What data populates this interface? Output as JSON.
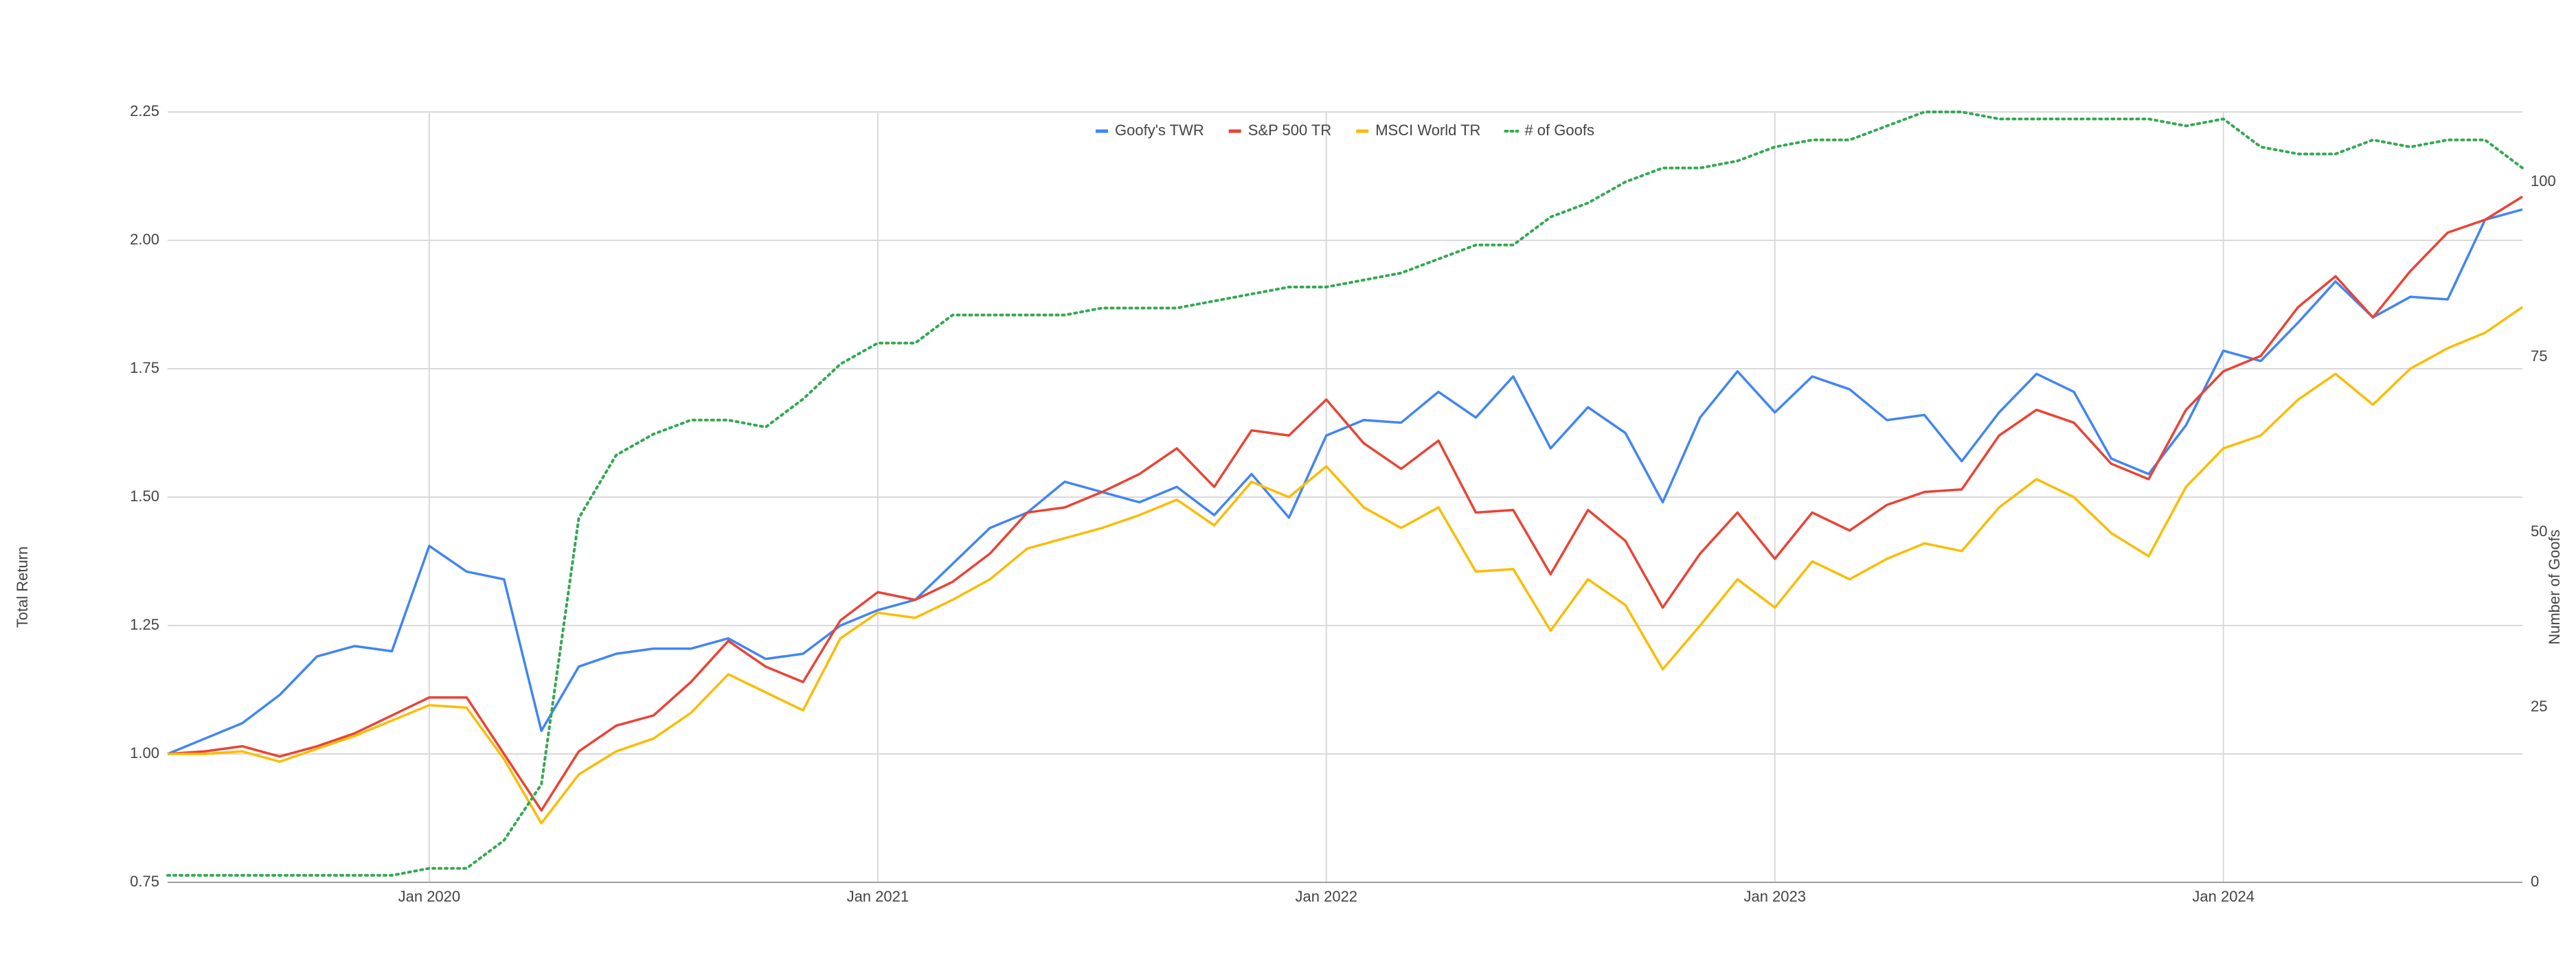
{
  "chart_data": {
    "type": "line",
    "x": [
      "2019-06",
      "2019-07",
      "2019-08",
      "2019-09",
      "2019-10",
      "2019-11",
      "2019-12",
      "2020-01",
      "2020-02",
      "2020-03",
      "2020-04",
      "2020-05",
      "2020-06",
      "2020-07",
      "2020-08",
      "2020-09",
      "2020-10",
      "2020-11",
      "2020-12",
      "2021-01",
      "2021-02",
      "2021-03",
      "2021-04",
      "2021-05",
      "2021-06",
      "2021-07",
      "2021-08",
      "2021-09",
      "2021-10",
      "2021-11",
      "2021-12",
      "2022-01",
      "2022-02",
      "2022-03",
      "2022-04",
      "2022-05",
      "2022-06",
      "2022-07",
      "2022-08",
      "2022-09",
      "2022-10",
      "2022-11",
      "2022-12",
      "2023-01",
      "2023-02",
      "2023-03",
      "2023-04",
      "2023-05",
      "2023-06",
      "2023-07",
      "2023-08",
      "2023-09",
      "2023-10",
      "2023-11",
      "2023-12",
      "2024-01",
      "2024-02",
      "2024-03",
      "2024-04",
      "2024-05",
      "2024-06",
      "2024-07",
      "2024-08",
      "2024-09"
    ],
    "xlim": [
      "2019-06",
      "2024-09"
    ],
    "xticks": [
      {
        "value": "2020-01",
        "label": "Jan 2020"
      },
      {
        "value": "2021-01",
        "label": "Jan 2021"
      },
      {
        "value": "2022-01",
        "label": "Jan 2022"
      },
      {
        "value": "2023-01",
        "label": "Jan 2023"
      },
      {
        "value": "2024-01",
        "label": "Jan 2024"
      }
    ],
    "ylabel": "Total Return",
    "y2label": "Number of Goofs",
    "ylim": [
      0.75,
      2.25
    ],
    "yticks": [
      0.75,
      {
        "value": 1,
        "label": "1.00"
      },
      1.25,
      {
        "value": 1.5,
        "label": "1.50"
      },
      1.75,
      {
        "value": 2,
        "label": "2.00"
      },
      2.25
    ],
    "y2lim": [
      0,
      110
    ],
    "y2ticks": [
      0,
      25,
      50,
      75,
      100
    ],
    "grid": true,
    "legend": "top",
    "series": [
      {
        "name": "Goofy's TWR",
        "color": "#4285f4",
        "style": "solid",
        "values": [
          1.0,
          1.03,
          1.06,
          1.115,
          1.19,
          1.21,
          1.2,
          1.405,
          1.355,
          1.34,
          1.045,
          1.17,
          1.195,
          1.205,
          1.205,
          1.225,
          1.185,
          1.195,
          1.25,
          1.28,
          1.3,
          1.37,
          1.44,
          1.47,
          1.53,
          1.51,
          1.49,
          1.52,
          1.465,
          1.545,
          1.46,
          1.62,
          1.65,
          1.645,
          1.705,
          1.655,
          1.735,
          1.595,
          1.675,
          1.625,
          1.49,
          1.655,
          1.745,
          1.665,
          1.735,
          1.71,
          1.65,
          1.66,
          1.57,
          1.665,
          1.74,
          1.705,
          1.575,
          1.545,
          1.64,
          1.785,
          1.765,
          1.84,
          1.92,
          1.85,
          1.89,
          1.885,
          2.04,
          2.06
        ]
      },
      {
        "name": "S&P 500 TR",
        "color": "#ea4335",
        "style": "solid",
        "values": [
          1.0,
          1.005,
          1.015,
          0.995,
          1.015,
          1.04,
          1.075,
          1.11,
          1.11,
          1.0,
          0.89,
          1.005,
          1.055,
          1.075,
          1.14,
          1.22,
          1.17,
          1.14,
          1.26,
          1.315,
          1.3,
          1.335,
          1.39,
          1.47,
          1.48,
          1.51,
          1.545,
          1.595,
          1.52,
          1.63,
          1.62,
          1.69,
          1.605,
          1.555,
          1.61,
          1.47,
          1.475,
          1.35,
          1.475,
          1.415,
          1.285,
          1.39,
          1.47,
          1.38,
          1.47,
          1.435,
          1.485,
          1.51,
          1.515,
          1.62,
          1.67,
          1.645,
          1.565,
          1.535,
          1.67,
          1.745,
          1.775,
          1.87,
          1.93,
          1.85,
          1.94,
          2.015,
          2.04,
          2.085
        ]
      },
      {
        "name": "MSCI World TR",
        "color": "#fbbc04",
        "style": "solid",
        "values": [
          1.0,
          1.0,
          1.005,
          0.985,
          1.01,
          1.035,
          1.065,
          1.095,
          1.09,
          0.99,
          0.865,
          0.96,
          1.005,
          1.03,
          1.08,
          1.155,
          1.12,
          1.085,
          1.225,
          1.275,
          1.265,
          1.3,
          1.34,
          1.4,
          1.42,
          1.44,
          1.465,
          1.495,
          1.445,
          1.53,
          1.5,
          1.56,
          1.48,
          1.44,
          1.48,
          1.355,
          1.36,
          1.24,
          1.34,
          1.29,
          1.165,
          1.25,
          1.34,
          1.285,
          1.375,
          1.34,
          1.38,
          1.41,
          1.395,
          1.48,
          1.535,
          1.5,
          1.43,
          1.385,
          1.52,
          1.595,
          1.62,
          1.69,
          1.74,
          1.68,
          1.75,
          1.79,
          1.82,
          1.87
        ]
      },
      {
        "name": "# of Goofs",
        "color": "#34a853",
        "style": "dotted",
        "axis": "y2",
        "values": [
          1,
          1,
          1,
          1,
          1,
          1,
          1,
          2,
          2,
          6,
          14,
          52,
          61,
          64,
          66,
          66,
          65,
          69,
          74,
          77,
          77,
          81,
          81,
          81,
          81,
          82,
          82,
          82,
          83,
          84,
          85,
          85,
          86,
          87,
          89,
          91,
          91,
          95,
          97,
          100,
          102,
          102,
          103,
          105,
          106,
          106,
          108,
          110,
          110,
          109,
          109,
          109,
          109,
          109,
          108,
          109,
          105,
          104,
          104,
          106,
          105,
          106,
          106,
          102
        ]
      }
    ]
  }
}
